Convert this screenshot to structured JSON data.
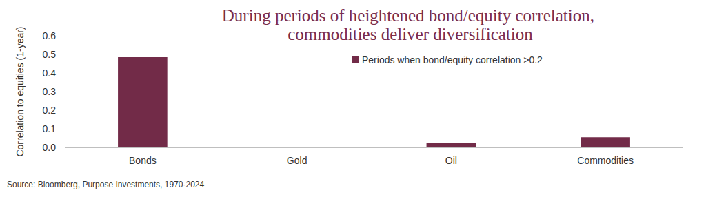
{
  "chart_data": {
    "type": "bar",
    "title": "During periods of heightened bond/equity correlation, commodities deliver diversification",
    "y_label": "Correlation to equities (1-year)",
    "source": "Source: Bloomberg, Purpose Investments, 1970-2024",
    "categories": [
      "Bonds",
      "Gold",
      "Oil",
      "Commodities"
    ],
    "series": [
      {
        "name": "Periods when bond/equity correlation >0.2",
        "color": "#722b48",
        "values": [
          0.485,
          0,
          0.025,
          0.055
        ]
      }
    ],
    "ylim": [
      0,
      0.6
    ],
    "yticks": [
      {
        "value": 0,
        "label": "0.0"
      },
      0.1,
      0.2,
      0.3,
      0.4,
      0.5,
      0.6
    ],
    "grid": false,
    "legend": "top"
  }
}
